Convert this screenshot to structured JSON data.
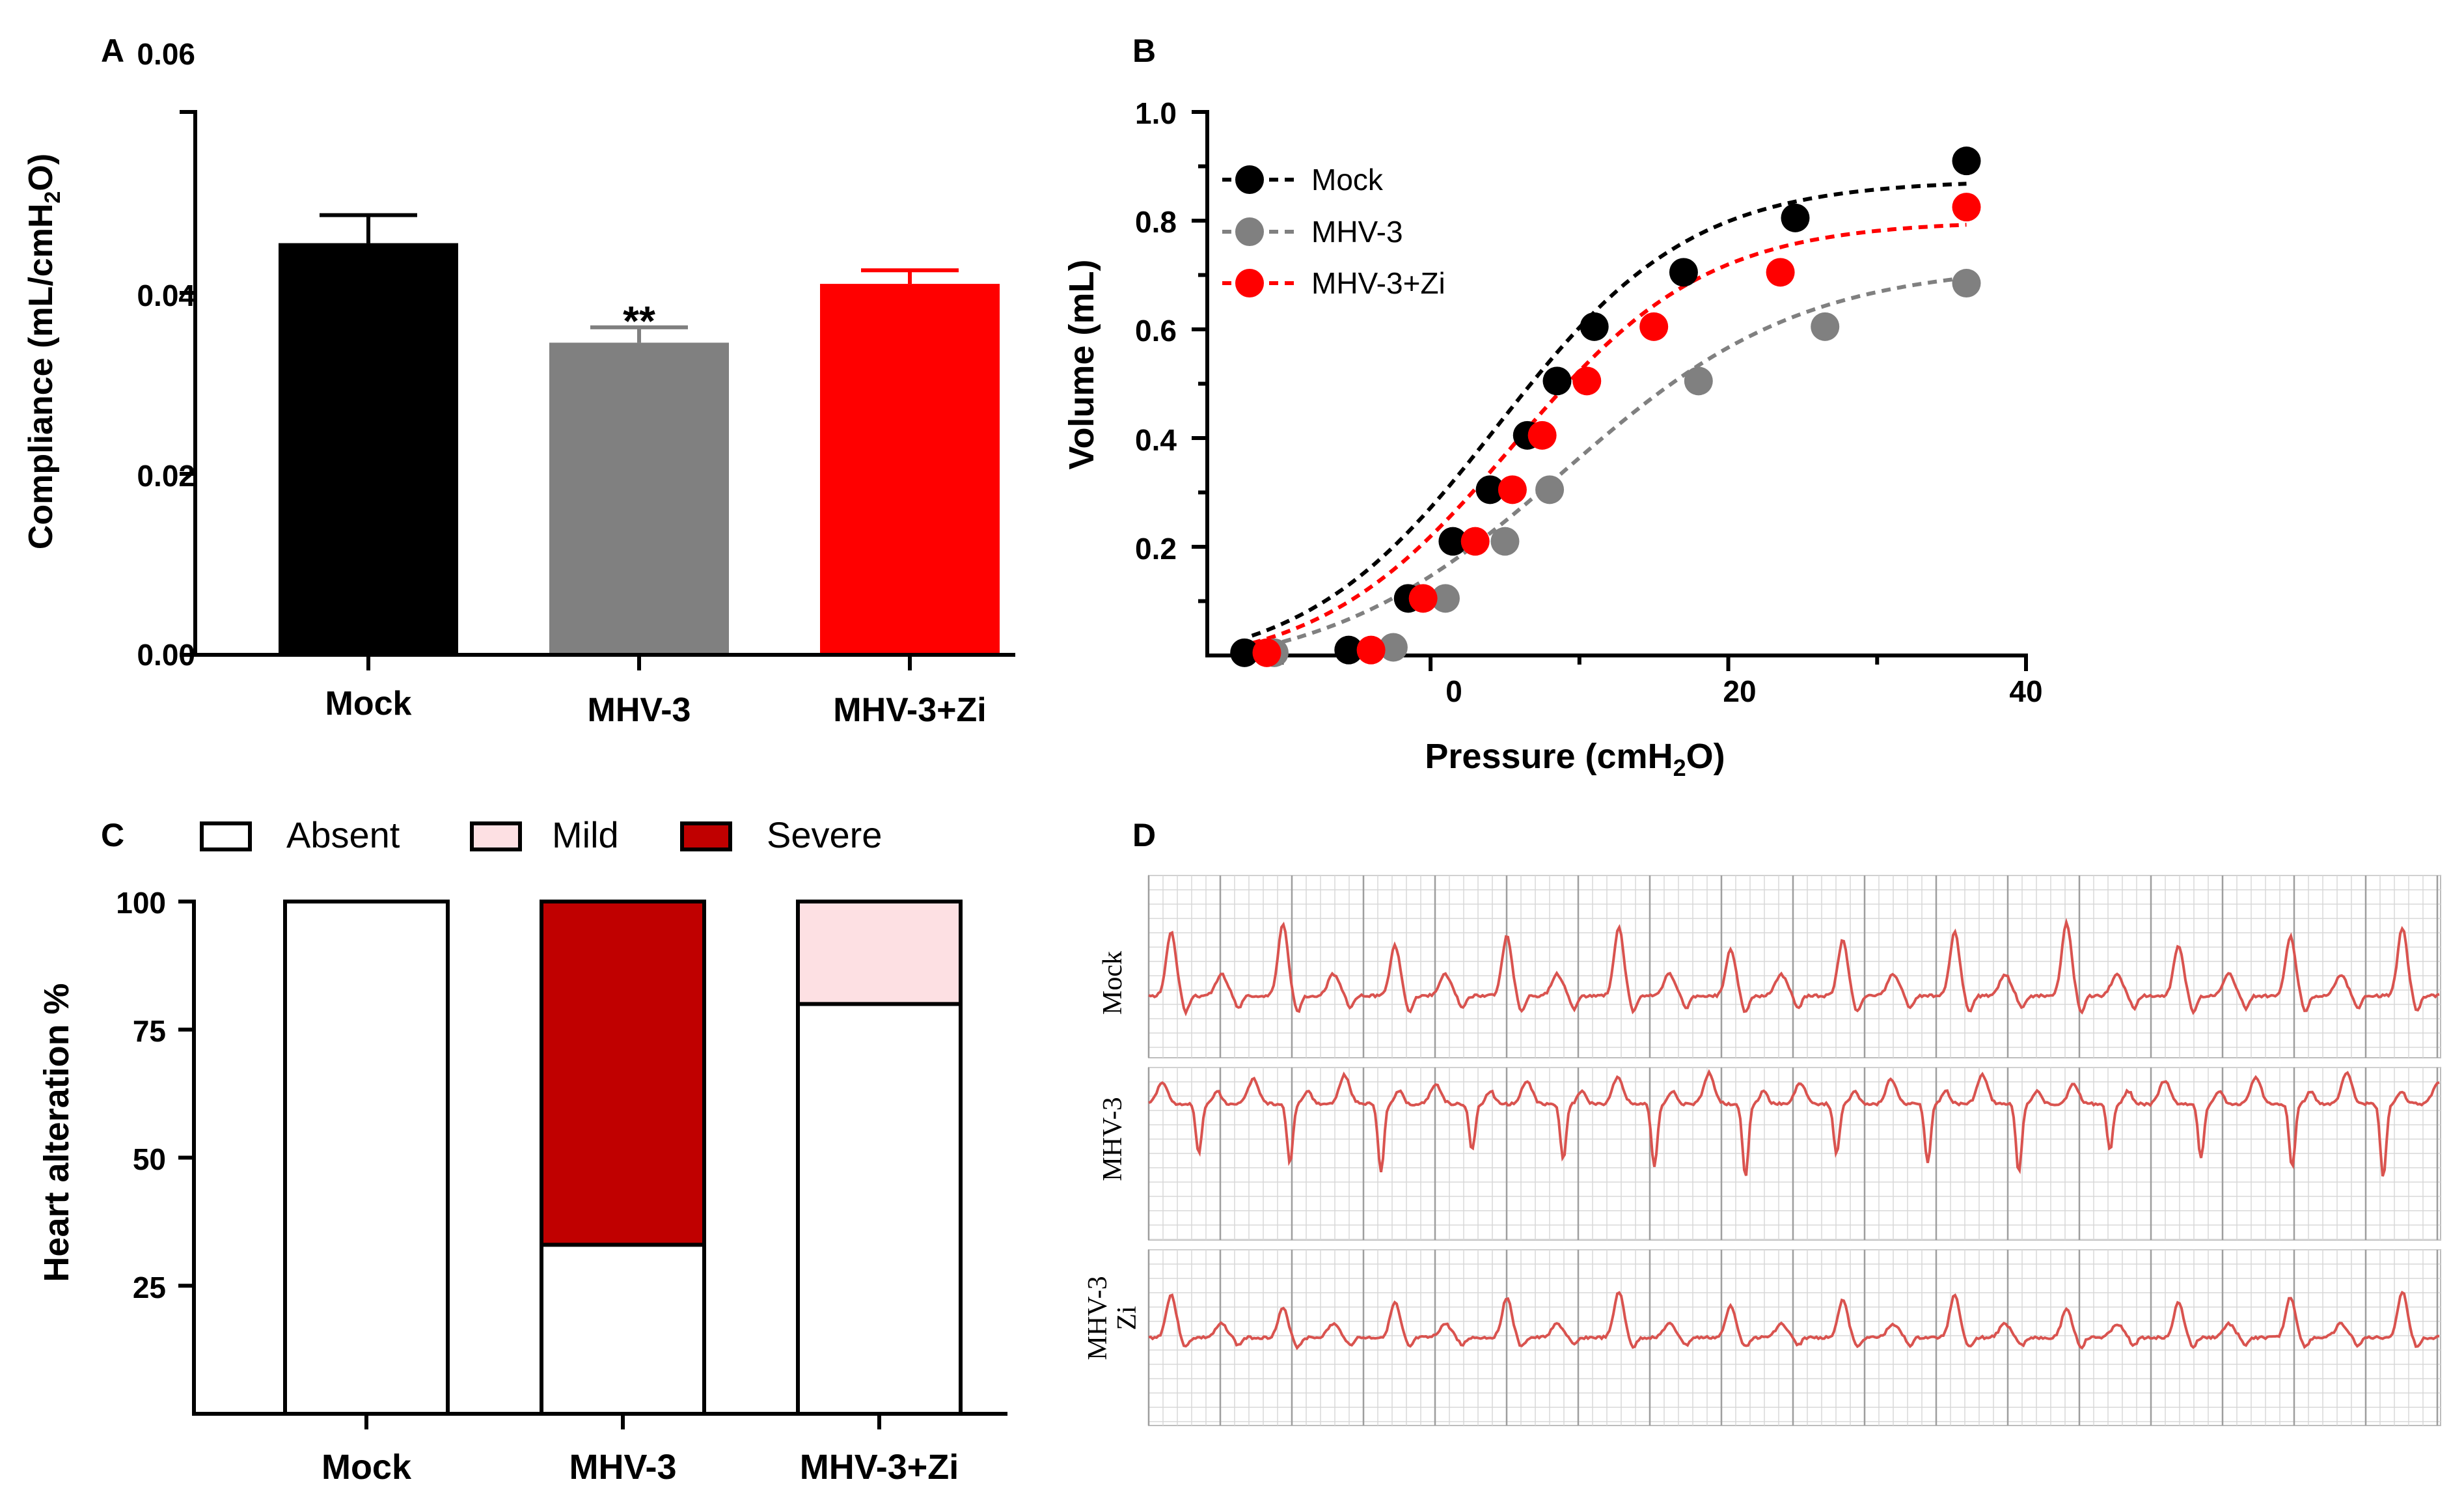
{
  "colors": {
    "mock": "#000000",
    "mhv3": "#808080",
    "mhv3zi": "#ff0000",
    "absent": "#ffffff",
    "mild": "#fde0e3",
    "severe": "#c00000",
    "ecg_line": "#d9534f",
    "ecg_grid": "#d8d8d8"
  },
  "chart_data": [
    {
      "panel": "A",
      "type": "bar",
      "categories": [
        "Mock",
        "MHV-3",
        "MHV-3+Zi"
      ],
      "values": [
        0.0455,
        0.0345,
        0.041
      ],
      "error_upper": [
        0.0486,
        0.0362,
        0.0425
      ],
      "annotations": [
        "",
        "**",
        ""
      ],
      "ylabel": "Compliance (mL/cmH2O)",
      "ylabel_parts": {
        "main": "Compliance (mL/cmH",
        "sub": "2",
        "tail": "O)"
      },
      "ylim": [
        0,
        0.06
      ],
      "yticks": [
        0.0,
        0.02,
        0.04,
        0.06
      ],
      "ytick_labels": [
        "0.00",
        "0.02",
        "0.04",
        "0.06"
      ]
    },
    {
      "panel": "B",
      "type": "scatter",
      "xlabel": "Pressure (cmH2O)",
      "xlabel_parts": {
        "main": "Pressure (cmH",
        "sub": "2",
        "tail": "O)"
      },
      "ylabel": "Volume (mL)",
      "xlim": [
        -15,
        40
      ],
      "ylim": [
        0,
        1.0
      ],
      "xticks": [
        0,
        20,
        40
      ],
      "xtick_labels": [
        "0",
        "20",
        "40"
      ],
      "yticks": [
        0.2,
        0.4,
        0.6,
        0.8,
        1.0
      ],
      "ytick_labels": [
        "0.2",
        "0.4",
        "0.6",
        "0.8",
        "1.0"
      ],
      "legend_position": "top-left",
      "series": [
        {
          "name": "Mock",
          "x": [
            -12.5,
            -5.5,
            -1.5,
            1.5,
            4,
            6.5,
            8.5,
            11,
            17,
            24.5,
            36
          ],
          "y": [
            0.005,
            0.01,
            0.105,
            0.21,
            0.305,
            0.405,
            0.505,
            0.605,
            0.705,
            0.805,
            0.91
          ],
          "fit": {
            "top": 0.875,
            "bottom": -0.03,
            "x50": 4.5,
            "slope": 6.5
          }
        },
        {
          "name": "MHV-3",
          "x": [
            -10.5,
            -2.5,
            1,
            5,
            8,
            18,
            26.5,
            36
          ],
          "y": [
            0.005,
            0.015,
            0.105,
            0.21,
            0.305,
            0.505,
            0.605,
            0.685
          ],
          "fit": {
            "top": 0.72,
            "bottom": -0.04,
            "x50": 9,
            "slope": 8
          }
        },
        {
          "name": "MHV-3+Zi",
          "x": [
            -11,
            -4,
            -0.5,
            3,
            5.5,
            7.5,
            10.5,
            15,
            23.5,
            36
          ],
          "y": [
            0.005,
            0.01,
            0.105,
            0.21,
            0.305,
            0.405,
            0.505,
            0.605,
            0.705,
            0.825
          ],
          "fit": {
            "top": 0.8,
            "bottom": -0.03,
            "x50": 5.5,
            "slope": 6.5
          }
        }
      ]
    },
    {
      "panel": "C",
      "type": "bar",
      "stacked": true,
      "categories": [
        "Mock",
        "MHV-3",
        "MHV-3+Zi"
      ],
      "ylabel": "Heart alteration %",
      "ylim": [
        0,
        100
      ],
      "yticks": [
        25,
        50,
        75,
        100
      ],
      "ytick_labels": [
        "25",
        "50",
        "75",
        "100"
      ],
      "legend_position": "top",
      "series": [
        {
          "name": "Absent",
          "values": [
            100,
            33,
            80
          ]
        },
        {
          "name": "Mild",
          "values": [
            0,
            0,
            20
          ]
        },
        {
          "name": "Severe",
          "values": [
            0,
            67,
            0
          ]
        }
      ]
    }
  ],
  "panel_labels": {
    "a": "A",
    "b": "B",
    "c": "C",
    "d": "D"
  },
  "ecg": {
    "panel": "D",
    "traces": [
      {
        "label": "Mock",
        "label_lines": [
          "Mock"
        ]
      },
      {
        "label": "MHV-3",
        "label_lines": [
          "MHV-3"
        ]
      },
      {
        "label": "MHV-3 Zi",
        "label_lines": [
          "MHV-3",
          "Zi"
        ]
      }
    ]
  }
}
